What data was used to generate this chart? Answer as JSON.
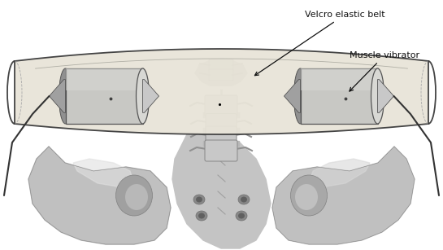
{
  "fig_width": 5.45,
  "fig_height": 3.07,
  "dpi": 100,
  "bg_color": "#ffffff",
  "label_velcro": "Velcro elastic belt",
  "label_muscle": "Muscle vibrator",
  "belt_fill": "#e8e4d8",
  "belt_border": "#444444",
  "vibrator_body": "#c0bdb8",
  "vibrator_dark": "#909090",
  "vibrator_light": "#d8d8d8",
  "text_fontsize": 8.0,
  "annotation_color": "#111111"
}
